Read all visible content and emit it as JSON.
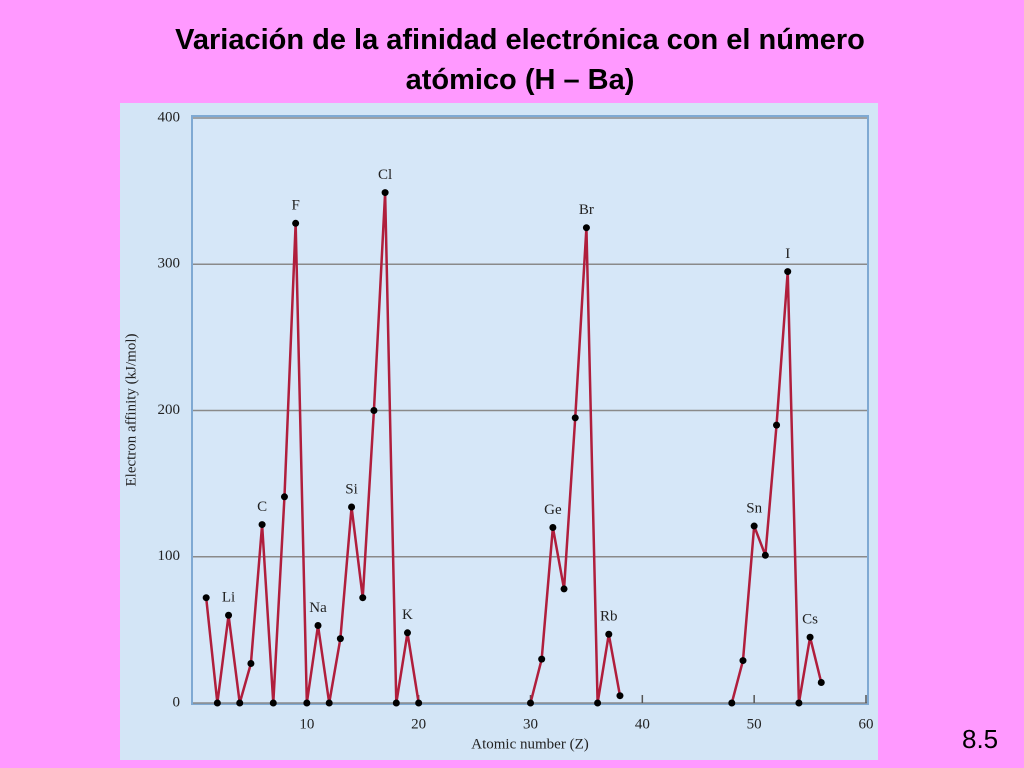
{
  "slide_number": "8.5",
  "chart_data": {
    "type": "line",
    "title": "Variación de la afinidad electrónica con el número atómico (H – Ba)",
    "xlabel": "Atomic number (Z)",
    "ylabel": "Electron affinity (kJ/mol)",
    "x": [
      1,
      2,
      3,
      4,
      5,
      6,
      7,
      8,
      9,
      10,
      11,
      12,
      13,
      14,
      15,
      16,
      17,
      18,
      19,
      20,
      25,
      30,
      31,
      32,
      33,
      34,
      35,
      36,
      37,
      38,
      44,
      48,
      49,
      50,
      51,
      52,
      53,
      54,
      55,
      56
    ],
    "series": [
      {
        "color": "#b01e3c",
        "values": [
          72,
          0,
          60,
          0,
          27,
          122,
          0,
          141,
          328,
          0,
          53,
          0,
          44,
          134,
          72,
          200,
          349,
          0,
          48,
          0,
          null,
          0,
          30,
          120,
          78,
          195,
          325,
          0,
          47,
          5,
          null,
          0,
          29,
          121,
          101,
          190,
          295,
          0,
          45,
          14
        ],
        "point_labels": [
          null,
          null,
          "Li",
          null,
          null,
          "C",
          null,
          null,
          "F",
          null,
          "Na",
          null,
          null,
          "Si",
          null,
          null,
          "Cl",
          null,
          "K",
          null,
          null,
          null,
          null,
          "Ge",
          null,
          null,
          "Br",
          null,
          "Rb",
          null,
          null,
          null,
          null,
          "Sn",
          null,
          null,
          "I",
          null,
          "Cs",
          null
        ]
      }
    ],
    "xlim": [
      0,
      60
    ],
    "xticks": [
      10,
      20,
      30,
      40,
      50,
      60
    ],
    "ylim": [
      0,
      400
    ],
    "yticks": [
      0,
      100,
      200,
      300,
      400
    ],
    "grid": true
  }
}
